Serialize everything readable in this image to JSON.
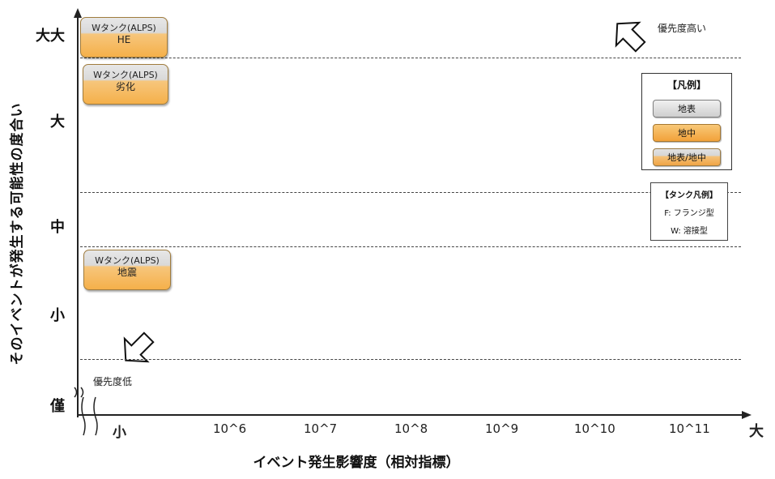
{
  "y_axis": {
    "title": "そのイベントが発生する可能性の度合い",
    "labels": [
      "大大",
      "大",
      "中",
      "小",
      "僅"
    ]
  },
  "x_axis": {
    "title": "イベント発生影響度（相対指標）",
    "labels": [
      "小",
      "10^6",
      "10^7",
      "10^8",
      "10^9",
      "10^10",
      "10^11",
      "大"
    ]
  },
  "events": [
    {
      "line1": "Wタンク(ALPS)",
      "line2": "HE",
      "type": "地表/地中"
    },
    {
      "line1": "Wタンク(ALPS)",
      "line2": "劣化",
      "type": "地表/地中"
    },
    {
      "line1": "Wタンク(ALPS)",
      "line2": "地震",
      "type": "地表/地中"
    }
  ],
  "priority": {
    "high": "優先度高い",
    "low": "優先度低"
  },
  "legend": {
    "title": "【凡例】",
    "items": [
      {
        "label": "地表",
        "color": "#d9d9d9"
      },
      {
        "label": "地中",
        "color": "#f5b04a"
      },
      {
        "label": "地表/地中",
        "color": "#f0b060"
      }
    ]
  },
  "tank_legend": {
    "title": "【タンク凡例】",
    "items": [
      "F: フランジ型",
      "W: 溶接型"
    ]
  }
}
